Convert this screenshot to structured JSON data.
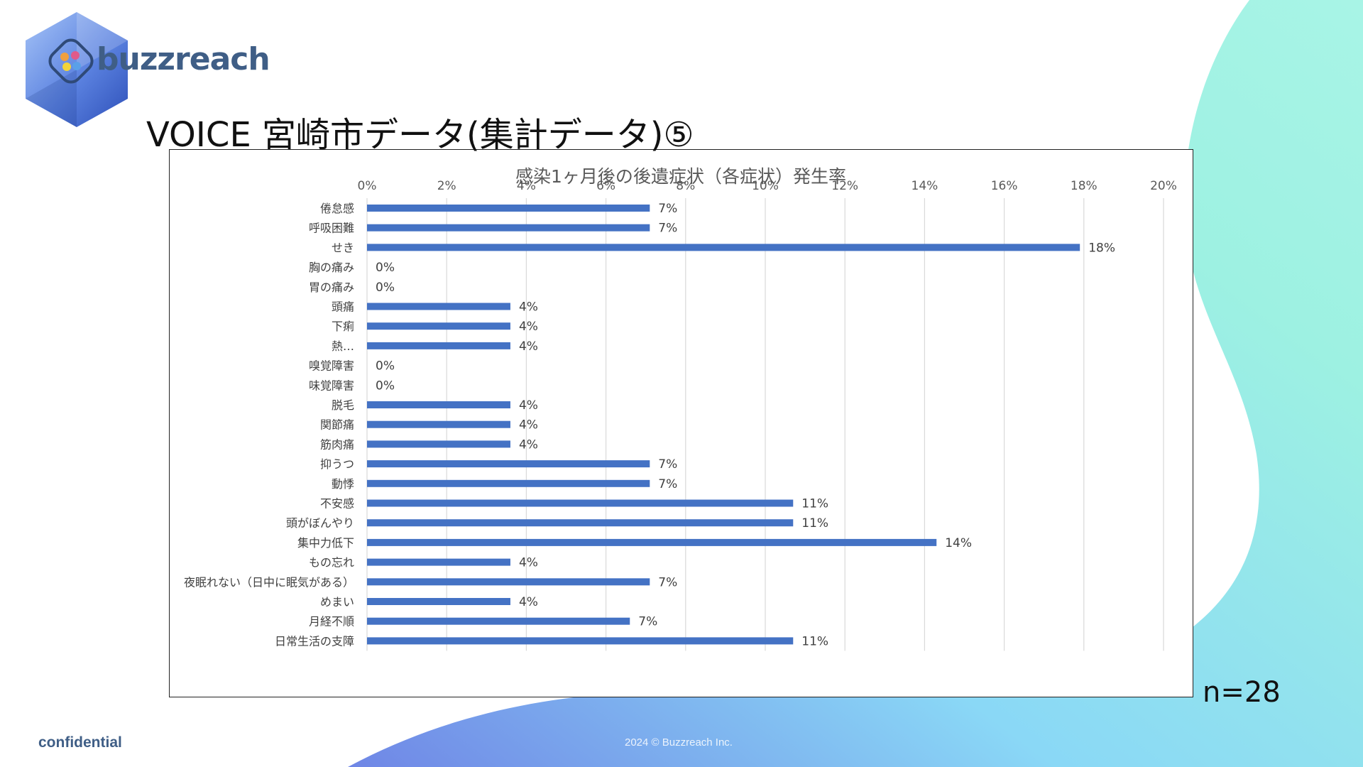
{
  "slide": {
    "title": "VOICE 宮崎市データ(集計データ)⑤",
    "sample_size": "n=28",
    "confidential": "confidential",
    "copyright": "2024 © Buzzreach Inc."
  },
  "brand": {
    "name": "buzzreach",
    "accent_color": "#3f5e86",
    "logo_gradient": [
      "#8fb4f2",
      "#3a5fcf"
    ],
    "background_gradient": [
      "#5f7fe0",
      "#86d9f5",
      "#9ff0e0"
    ]
  },
  "chart_data": {
    "type": "bar",
    "orientation": "horizontal",
    "title": "感染1ヶ月後の後遺症状（各症状）発生率",
    "xlabel": "",
    "ylabel": "",
    "xlim": [
      0,
      20
    ],
    "x_tick_labels": [
      "0%",
      "2%",
      "4%",
      "6%",
      "8%",
      "10%",
      "12%",
      "14%",
      "16%",
      "18%",
      "20%"
    ],
    "grid": "vertical",
    "bar_color": "#4472c4",
    "categories": [
      "倦怠感",
      "呼吸困難",
      "せき",
      "胸の痛み",
      "胃の痛み",
      "頭痛",
      "下痢",
      "熱…",
      "嗅覚障害",
      "味覚障害",
      "脱毛",
      "関節痛",
      "筋肉痛",
      "抑うつ",
      "動悸",
      "不安感",
      "頭がぼんやり",
      "集中力低下",
      "もの忘れ",
      "夜眠れない（日中に眠気がある）",
      "めまい",
      "月経不順",
      "日常生活の支障"
    ],
    "values": [
      7.1,
      7.1,
      17.9,
      0,
      0,
      3.6,
      3.6,
      3.6,
      0,
      0,
      3.6,
      3.6,
      3.6,
      7.1,
      7.1,
      10.7,
      10.7,
      14.3,
      3.6,
      7.1,
      3.6,
      6.6,
      10.7
    ],
    "data_labels": [
      "7%",
      "7%",
      "18%",
      "0%",
      "0%",
      "4%",
      "4%",
      "4%",
      "0%",
      "0%",
      "4%",
      "4%",
      "4%",
      "7%",
      "7%",
      "11%",
      "11%",
      "14%",
      "4%",
      "7%",
      "4%",
      "7%",
      "11%"
    ]
  }
}
